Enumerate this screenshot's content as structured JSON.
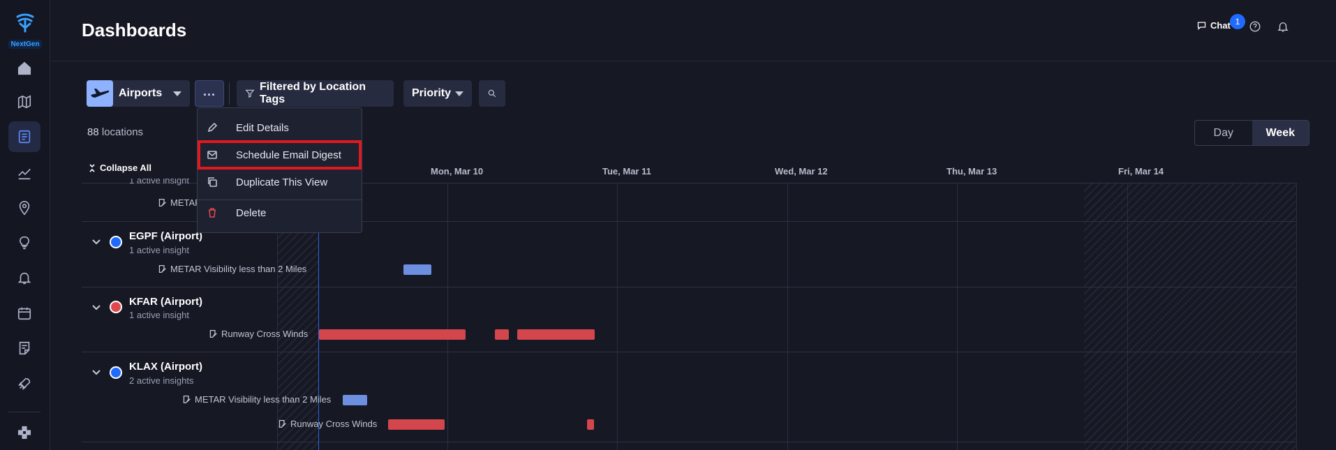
{
  "app": {
    "logo_text": "NextGen"
  },
  "header": {
    "title": "Dashboards",
    "chat_label": "Chat",
    "chat_badge": "1"
  },
  "sidebar": {
    "items": [
      {
        "icon": "home-icon"
      },
      {
        "icon": "map-icon"
      },
      {
        "icon": "dashboard-icon",
        "active": true
      },
      {
        "icon": "trend-icon"
      },
      {
        "icon": "location-pin-icon"
      },
      {
        "icon": "lightbulb-icon"
      },
      {
        "icon": "bell-icon"
      },
      {
        "icon": "calendar-icon"
      },
      {
        "icon": "notes-icon"
      },
      {
        "icon": "rocket-icon"
      },
      {
        "icon": "integrations-icon"
      }
    ]
  },
  "toolbar": {
    "dashboard_select": "Airports",
    "filter_label": "Filtered by Location Tags",
    "priority_label": "Priority"
  },
  "locations": {
    "count": "88",
    "label": "locations"
  },
  "view_toggle": {
    "day": "Day",
    "week": "Week",
    "selected": "Week"
  },
  "menu": {
    "items": [
      {
        "label": "Edit Details",
        "icon": "pencil-icon"
      },
      {
        "label": "Schedule Email Digest",
        "icon": "envelope-icon"
      },
      {
        "label": "Duplicate This View",
        "icon": "copy-icon"
      },
      {
        "label": "Delete",
        "icon": "trash-icon",
        "color": "#e0484e"
      }
    ]
  },
  "timeline": {
    "collapse_label": "Collapse All",
    "days": [
      "Mon, Mar 10",
      "Tue, Mar 11",
      "Wed, Mar 12",
      "Thu, Mar 13",
      "Fri, Mar 14"
    ],
    "rows": [
      {
        "partial_sub": "1 active insight",
        "partial_insight": "METAR"
      },
      {
        "title": "EGPF (Airport)",
        "sub": "1 active insight",
        "status_color": "#1f6bff",
        "insights": [
          "METAR Visibility less than 2 Miles"
        ]
      },
      {
        "title": "KFAR (Airport)",
        "sub": "1 active insight",
        "status_color": "#e0484e",
        "insights": [
          "Runway Cross Winds"
        ]
      },
      {
        "title": "KLAX (Airport)",
        "sub": "2 active insights",
        "status_color": "#1f6bff",
        "insights": [
          "METAR Visibility less than 2 Miles",
          "Runway Cross Winds"
        ]
      }
    ]
  },
  "colors": {
    "accent": "#1f6bff",
    "alert": "#d2464c",
    "visibility": "#6d8fe0",
    "highlight": "#e0191f"
  }
}
